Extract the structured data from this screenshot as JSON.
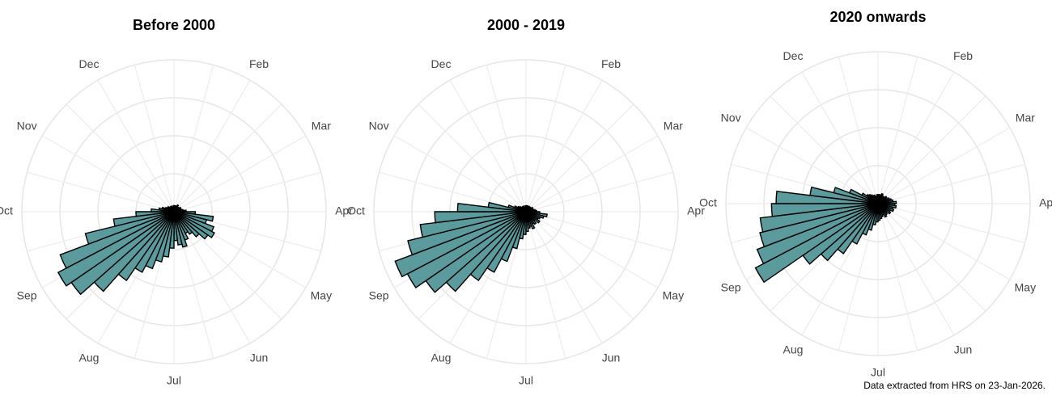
{
  "chart_data": [
    {
      "type": "polar-bar",
      "title": "Before 2000",
      "color": "#5b9a9d",
      "theta_labels": [
        null,
        "Feb",
        "Mar",
        "Apr",
        "May",
        "Jun",
        "Jul",
        "Aug",
        "Sep",
        "Oct",
        "Nov",
        "Dec"
      ],
      "rlim": [
        0,
        100
      ],
      "values": [
        4,
        3,
        4,
        3,
        5,
        4,
        3,
        4,
        5,
        4,
        5,
        6,
        8,
        14,
        26,
        22,
        28,
        30,
        27,
        22,
        18,
        16,
        20,
        24,
        22,
        19,
        24,
        30,
        34,
        40,
        45,
        55,
        70,
        82,
        86,
        80,
        60,
        40,
        25,
        15,
        10,
        8,
        6,
        5,
        5,
        4,
        4,
        3,
        4,
        3,
        3,
        4
      ]
    },
    {
      "type": "polar-bar",
      "title": "2000 - 2019",
      "color": "#5b9a9d",
      "theta_labels": [
        null,
        "Feb",
        "Mar",
        "Apr",
        "May",
        "Jun",
        "Jul",
        "Aug",
        "Sep",
        "Oct",
        "Nov",
        "Dec"
      ],
      "rlim": [
        0,
        100
      ],
      "values": [
        3,
        4,
        3,
        4,
        3,
        4,
        4,
        3,
        5,
        4,
        5,
        6,
        7,
        9,
        14,
        12,
        10,
        9,
        11,
        8,
        10,
        9,
        12,
        10,
        11,
        13,
        15,
        18,
        25,
        35,
        45,
        55,
        70,
        80,
        88,
        92,
        80,
        70,
        60,
        45,
        25,
        12,
        8,
        6,
        5,
        4,
        4,
        3,
        4,
        3,
        3,
        4
      ]
    },
    {
      "type": "polar-bar",
      "title": "2020 onwards",
      "color": "#5b9a9d",
      "theta_labels": [
        null,
        "Feb",
        "Mar",
        "Apr",
        "May",
        "Jun",
        "Jul",
        "Aug",
        "Sep",
        "Oct",
        "Nov",
        "Dec"
      ],
      "rlim": [
        0,
        100
      ],
      "values": [
        5,
        6,
        5,
        7,
        6,
        5,
        6,
        7,
        6,
        8,
        9,
        10,
        12,
        11,
        12,
        10,
        11,
        9,
        10,
        8,
        9,
        10,
        8,
        9,
        10,
        11,
        12,
        14,
        18,
        22,
        30,
        40,
        50,
        60,
        91,
        85,
        80,
        78,
        70,
        67,
        45,
        30,
        20,
        12,
        9,
        8,
        7,
        6,
        6,
        5,
        5,
        6
      ]
    }
  ],
  "footer": "Data extracted from HRS on 23-Jan-2026."
}
